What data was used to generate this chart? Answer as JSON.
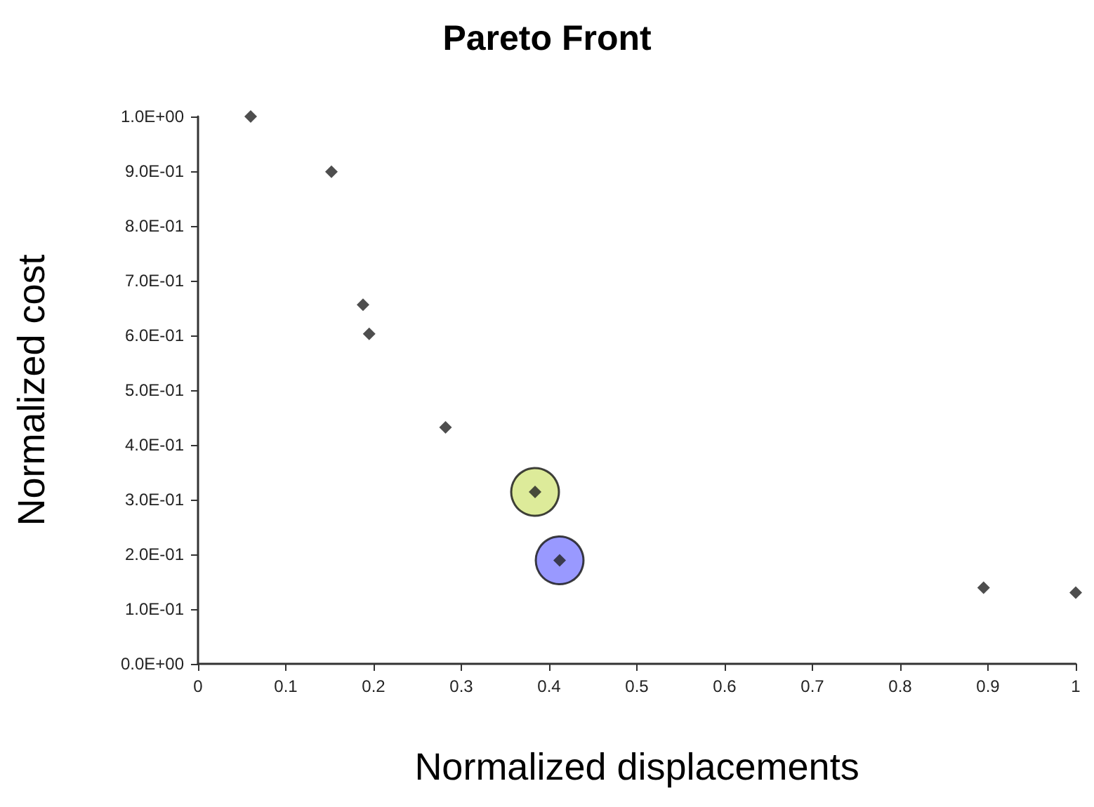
{
  "chart_data": {
    "type": "scatter",
    "title": "Pareto Front",
    "xlabel": "Normalized displacements",
    "ylabel": "Normalized cost",
    "xlim": [
      0,
      1
    ],
    "xticks": [
      0,
      0.1,
      0.2,
      0.3,
      0.4,
      0.5,
      0.6,
      0.7,
      0.8,
      0.9,
      1
    ],
    "ylim": [
      0,
      1
    ],
    "yticks": [
      {
        "value": 0,
        "label": "0.0E+00"
      },
      {
        "value": 0.1,
        "label": "1.0E-01"
      },
      {
        "value": 0.2,
        "label": "2.0E-01"
      },
      {
        "value": 0.3,
        "label": "3.0E-01"
      },
      {
        "value": 0.4,
        "label": "4.0E-01"
      },
      {
        "value": 0.5,
        "label": "5.0E-01"
      },
      {
        "value": 0.6,
        "label": "6.0E-01"
      },
      {
        "value": 0.7,
        "label": "7.0E-01"
      },
      {
        "value": 0.8,
        "label": "8.0E-01"
      },
      {
        "value": 0.9,
        "label": "9.0E-01"
      },
      {
        "value": 1,
        "label": "1.0E+00"
      }
    ],
    "grid": false,
    "series": [
      {
        "marker": "circle",
        "color": "#d4e681",
        "x": [
          0.384
        ],
        "values": [
          0.314
        ]
      },
      {
        "marker": "circle",
        "color": "#8080ff",
        "x": [
          0.412
        ],
        "values": [
          0.189
        ]
      },
      {
        "marker": "diamond",
        "color": "#222222",
        "x": [
          0.06,
          0.152,
          0.188,
          0.195,
          0.282,
          0.384,
          0.412,
          0.895,
          1.0
        ],
        "values": [
          1.0,
          0.899,
          0.656,
          0.603,
          0.432,
          0.314,
          0.189,
          0.139,
          0.13
        ]
      }
    ]
  }
}
